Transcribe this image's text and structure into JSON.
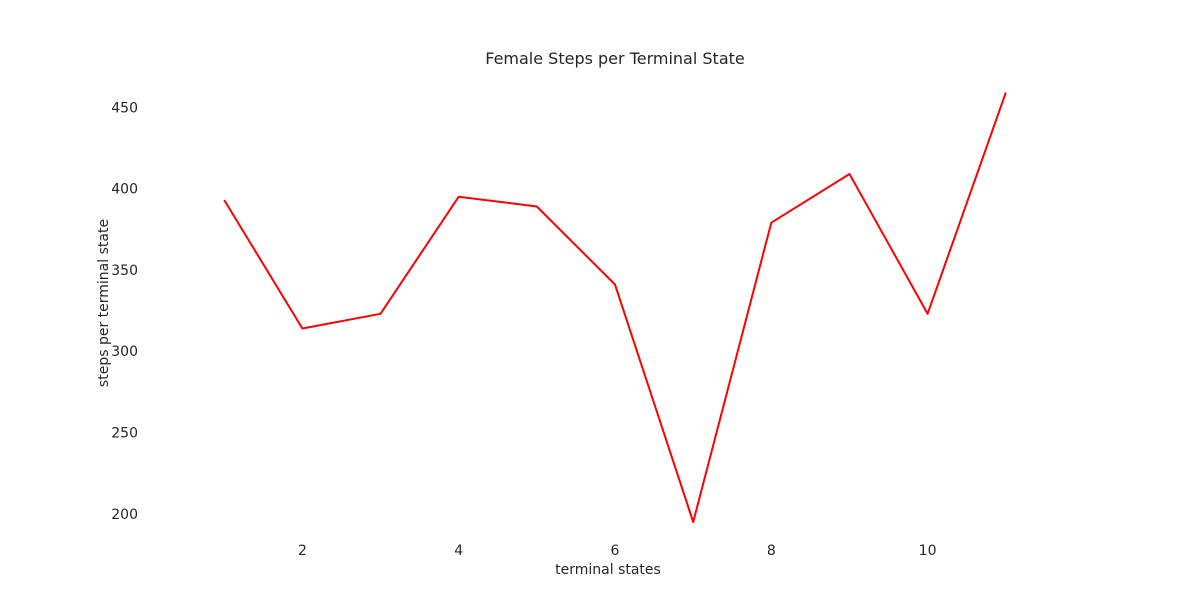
{
  "chart_data": {
    "type": "line",
    "title": "Female Steps per Terminal State",
    "xlabel": "terminal states",
    "ylabel": "steps per terminal state",
    "x": [
      1,
      2,
      3,
      4,
      5,
      6,
      7,
      8,
      9,
      10,
      11
    ],
    "series": [
      {
        "values": [
          393,
          314,
          323,
          395,
          389,
          341,
          195,
          379,
          409,
          323,
          459
        ],
        "color": "#ff0000"
      }
    ],
    "x_ticks": [
      2,
      4,
      6,
      8,
      10
    ],
    "y_ticks": [
      200,
      250,
      300,
      350,
      400,
      450
    ],
    "xlim": [
      0.05,
      11.95
    ],
    "ylim": [
      187,
      468
    ],
    "grid": false,
    "legend": "none"
  }
}
